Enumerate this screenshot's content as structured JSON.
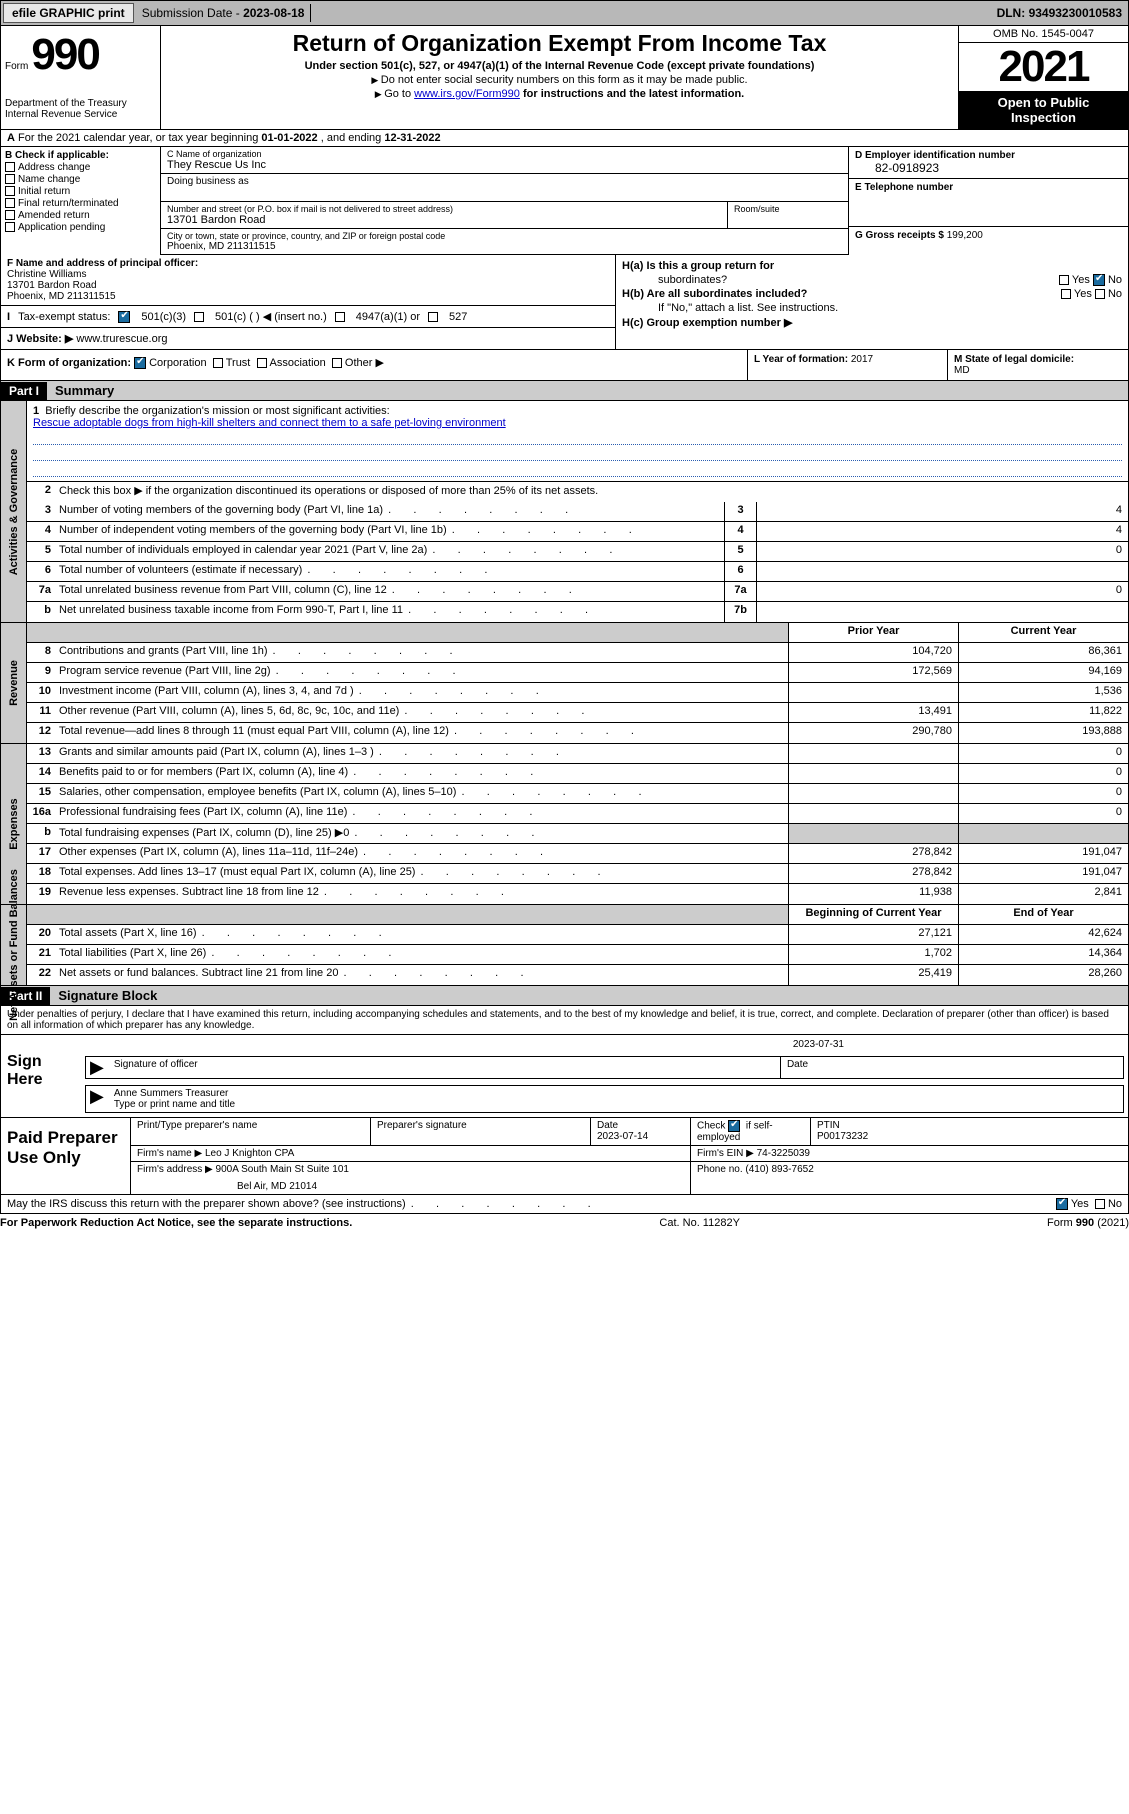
{
  "topbar": {
    "efile": "efile GRAPHIC print",
    "submission_label": "Submission Date - ",
    "submission_date": "2023-08-18",
    "dln_label": "DLN: ",
    "dln": "93493230010583"
  },
  "header": {
    "form_word": "Form",
    "form_num": "990",
    "dept": "Department of the Treasury",
    "irs": "Internal Revenue Service",
    "title": "Return of Organization Exempt From Income Tax",
    "sub": "Under section 501(c), 527, or 4947(a)(1) of the Internal Revenue Code (except private foundations)",
    "note1": "Do not enter social security numbers on this form as it may be made public.",
    "note2_pre": "Go to ",
    "note2_link": "www.irs.gov/Form990",
    "note2_post": " for instructions and the latest information.",
    "omb": "OMB No. 1545-0047",
    "year": "2021",
    "open1": "Open to Public",
    "open2": "Inspection"
  },
  "row_a": {
    "a": "A",
    "text": "For the 2021 calendar year, or tax year beginning ",
    "begin": "01-01-2022",
    "mid": " , and ending ",
    "end": "12-31-2022"
  },
  "col_b": {
    "hdr": "B Check if applicable:",
    "items": [
      "Address change",
      "Name change",
      "Initial return",
      "Final return/terminated",
      "Amended return",
      "Application pending"
    ]
  },
  "name_box": {
    "c_lbl": "C Name of organization",
    "c_val": "They Rescue Us Inc",
    "dba_lbl": "Doing business as",
    "addr_lbl": "Number and street (or P.O. box if mail is not delivered to street address)",
    "addr_val": "13701 Bardon Road",
    "suite_lbl": "Room/suite",
    "city_lbl": "City or town, state or province, country, and ZIP or foreign postal code",
    "city_val": "Phoenix, MD  211311515"
  },
  "col_d": {
    "d_lbl": "D Employer identification number",
    "d_val": "82-0918923",
    "e_lbl": "E Telephone number",
    "g_lbl": "G Gross receipts $ ",
    "g_val": "199,200"
  },
  "f_box": {
    "lbl": "F  Name and address of principal officer:",
    "name": "Christine Williams",
    "addr1": "13701 Bardon Road",
    "addr2": "Phoenix, MD  211311515"
  },
  "i_row": {
    "lbl": "Tax-exempt status:",
    "o1": "501(c)(3)",
    "o2": "501(c) (  ) ◀ (insert no.)",
    "o3": "4947(a)(1) or",
    "o4": "527"
  },
  "j_row": {
    "lbl": "J    Website: ▶ ",
    "val": "www.trurescue.org"
  },
  "h_block": {
    "ha": "H(a)  Is this a group return for",
    "ha2": "subordinates?",
    "hb": "H(b)  Are all subordinates included?",
    "hb2": "If \"No,\" attach a list. See instructions.",
    "hc": "H(c)  Group exemption number ▶",
    "yes": "Yes",
    "no": "No"
  },
  "k_row": {
    "k": "K Form of organization: ",
    "corp": "Corporation",
    "trust": "Trust",
    "assoc": "Association",
    "other": "Other ▶",
    "l_lbl": "L Year of formation: ",
    "l_val": "2017",
    "m_lbl": "M State of legal domicile:",
    "m_val": "MD"
  },
  "part1": {
    "hdr": "Part I",
    "title": "Summary"
  },
  "mission": {
    "num": "1",
    "lbl": "Briefly describe the organization's mission or most significant activities:",
    "text": "Rescue adoptable dogs from high-kill shelters and connect them to a safe pet-loving environment"
  },
  "gov": {
    "label": "Activities & Governance",
    "r2": "Check this box ▶        if the organization discontinued its operations or disposed of more than 25% of its net assets.",
    "rows": [
      {
        "n": "3",
        "d": "Number of voting members of the governing body (Part VI, line 1a)",
        "box": "3",
        "v": "4"
      },
      {
        "n": "4",
        "d": "Number of independent voting members of the governing body (Part VI, line 1b)",
        "box": "4",
        "v": "4"
      },
      {
        "n": "5",
        "d": "Total number of individuals employed in calendar year 2021 (Part V, line 2a)",
        "box": "5",
        "v": "0"
      },
      {
        "n": "6",
        "d": "Total number of volunteers (estimate if necessary)",
        "box": "6",
        "v": ""
      },
      {
        "n": "7a",
        "d": "Total unrelated business revenue from Part VIII, column (C), line 12",
        "box": "7a",
        "v": "0"
      },
      {
        "n": "b",
        "d": "Net unrelated business taxable income from Form 990-T, Part I, line 11",
        "box": "7b",
        "v": ""
      }
    ]
  },
  "col_hdrs": {
    "prior": "Prior Year",
    "current": "Current Year",
    "boy": "Beginning of Current Year",
    "eoy": "End of Year"
  },
  "rev": {
    "label": "Revenue",
    "rows": [
      {
        "n": "8",
        "d": "Contributions and grants (Part VIII, line 1h)",
        "p": "104,720",
        "c": "86,361"
      },
      {
        "n": "9",
        "d": "Program service revenue (Part VIII, line 2g)",
        "p": "172,569",
        "c": "94,169"
      },
      {
        "n": "10",
        "d": "Investment income (Part VIII, column (A), lines 3, 4, and 7d )",
        "p": "",
        "c": "1,536"
      },
      {
        "n": "11",
        "d": "Other revenue (Part VIII, column (A), lines 5, 6d, 8c, 9c, 10c, and 11e)",
        "p": "13,491",
        "c": "11,822"
      },
      {
        "n": "12",
        "d": "Total revenue—add lines 8 through 11 (must equal Part VIII, column (A), line 12)",
        "p": "290,780",
        "c": "193,888"
      }
    ]
  },
  "exp": {
    "label": "Expenses",
    "rows": [
      {
        "n": "13",
        "d": "Grants and similar amounts paid (Part IX, column (A), lines 1–3 )",
        "p": "",
        "c": "0"
      },
      {
        "n": "14",
        "d": "Benefits paid to or for members (Part IX, column (A), line 4)",
        "p": "",
        "c": "0"
      },
      {
        "n": "15",
        "d": "Salaries, other compensation, employee benefits (Part IX, column (A), lines 5–10)",
        "p": "",
        "c": "0"
      },
      {
        "n": "16a",
        "d": "Professional fundraising fees (Part IX, column (A), line 11e)",
        "p": "",
        "c": "0"
      },
      {
        "n": "b",
        "d": "Total fundraising expenses (Part IX, column (D), line 25) ▶0",
        "p": "grey",
        "c": "grey"
      },
      {
        "n": "17",
        "d": "Other expenses (Part IX, column (A), lines 11a–11d, 11f–24e)",
        "p": "278,842",
        "c": "191,047"
      },
      {
        "n": "18",
        "d": "Total expenses. Add lines 13–17 (must equal Part IX, column (A), line 25)",
        "p": "278,842",
        "c": "191,047"
      },
      {
        "n": "19",
        "d": "Revenue less expenses. Subtract line 18 from line 12",
        "p": "11,938",
        "c": "2,841"
      }
    ]
  },
  "net": {
    "label": "Net Assets or Fund Balances",
    "rows": [
      {
        "n": "20",
        "d": "Total assets (Part X, line 16)",
        "p": "27,121",
        "c": "42,624"
      },
      {
        "n": "21",
        "d": "Total liabilities (Part X, line 26)",
        "p": "1,702",
        "c": "14,364"
      },
      {
        "n": "22",
        "d": "Net assets or fund balances. Subtract line 21 from line 20",
        "p": "25,419",
        "c": "28,260"
      }
    ]
  },
  "part2": {
    "hdr": "Part II",
    "title": "Signature Block"
  },
  "sig": {
    "decl": "Under penalties of perjury, I declare that I have examined this return, including accompanying schedules and statements, and to the best of my knowledge and belief, it is true, correct, and complete. Declaration of preparer (other than officer) is based on all information of which preparer has any knowledge.",
    "sign_here": "Sign Here",
    "sig_of": "Signature of officer",
    "date_lbl": "Date",
    "date": "2023-07-31",
    "name": "Anne Summers Treasurer",
    "type_lbl": "Type or print name and title"
  },
  "prep": {
    "label": "Paid Preparer Use Only",
    "h1": "Print/Type preparer's name",
    "h2": "Preparer's signature",
    "h3_lbl": "Date",
    "h3": "2023-07-14",
    "h4_lbl": "Check",
    "h4_lbl2": "if self-employed",
    "h5_lbl": "PTIN",
    "h5": "P00173232",
    "firm_name_lbl": "Firm's name      ▶ ",
    "firm_name": "Leo J Knighton CPA",
    "ein_lbl": "Firm's EIN ▶ ",
    "ein": "74-3225039",
    "addr_lbl": "Firm's address ▶ ",
    "addr1": "900A South Main St Suite 101",
    "addr2": "Bel Air, MD  21014",
    "phone_lbl": "Phone no. ",
    "phone": "(410) 893-7652"
  },
  "may": {
    "text": "May the IRS discuss this return with the preparer shown above? (see instructions)",
    "yes": "Yes",
    "no": "No"
  },
  "footer": {
    "l": "For Paperwork Reduction Act Notice, see the separate instructions.",
    "m": "Cat. No. 11282Y",
    "r": "Form 990 (2021)"
  }
}
